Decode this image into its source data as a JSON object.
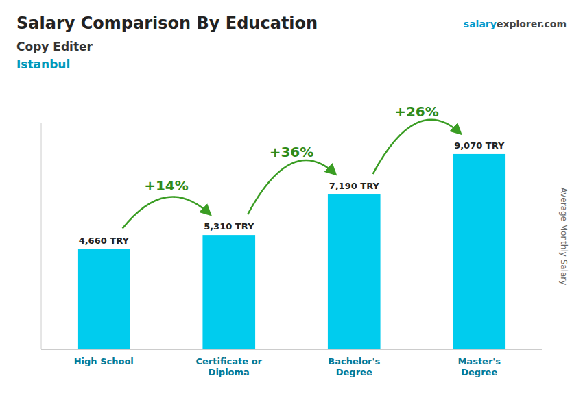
{
  "chart_data": {
    "type": "bar",
    "title": "Salary Comparison By Education",
    "subtitle": "Copy Editer",
    "location": "Istanbul",
    "brand": [
      "salary",
      "explorer",
      ".com"
    ],
    "y_label": "Average Monthly Salary",
    "categories": [
      "High School",
      "Certificate or\nDiploma",
      "Bachelor's\nDegree",
      "Master's\nDegree"
    ],
    "values": [
      4660,
      5310,
      7190,
      9070
    ],
    "value_labels": [
      "4,660 TRY",
      "5,310 TRY",
      "7,190 TRY",
      "9,070 TRY"
    ],
    "annotations": [
      "+14%",
      "+36%",
      "+26%"
    ],
    "color": "#00CCEE",
    "ylim": [
      0,
      10500
    ],
    "grid": false,
    "data_labels": true,
    "tick_labels": "x"
  }
}
